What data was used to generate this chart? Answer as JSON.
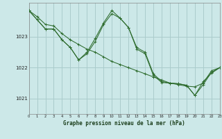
{
  "title": "Graphe pression niveau de la mer (hPa)",
  "background_color": "#cce8e8",
  "grid_color": "#aacccc",
  "line_color": "#2d6b2d",
  "xlim": [
    0,
    23
  ],
  "ylim": [
    1020.5,
    1024.1
  ],
  "yticks": [
    1021,
    1022,
    1023
  ],
  "xticks": [
    0,
    1,
    2,
    3,
    4,
    5,
    6,
    7,
    8,
    9,
    10,
    11,
    12,
    13,
    14,
    15,
    16,
    17,
    18,
    19,
    20,
    21,
    22,
    23
  ],
  "line1": [
    1023.85,
    1023.65,
    1023.4,
    1023.35,
    1023.1,
    1022.9,
    1022.75,
    1022.6,
    1022.5,
    1022.35,
    1022.2,
    1022.1,
    1022.0,
    1021.9,
    1021.8,
    1021.7,
    1021.6,
    1021.5,
    1021.45,
    1021.4,
    1021.38,
    1021.5,
    1021.9,
    1022.0
  ],
  "line2": [
    1023.85,
    1023.55,
    1023.25,
    1023.25,
    1022.9,
    1022.65,
    1022.25,
    1022.45,
    1022.85,
    1023.4,
    1023.75,
    1023.6,
    1023.3,
    1022.65,
    1022.5,
    1021.8,
    1021.55,
    1021.5,
    1021.48,
    1021.43,
    1021.1,
    1021.45,
    1021.85,
    1022.0
  ],
  "line3": [
    1023.85,
    1023.55,
    1023.25,
    1023.25,
    1022.9,
    1022.65,
    1022.25,
    1022.5,
    1022.95,
    1023.45,
    1023.85,
    1023.6,
    1023.3,
    1022.6,
    1022.45,
    1021.75,
    1021.52,
    1021.5,
    1021.48,
    1021.43,
    1021.1,
    1021.55,
    1021.82,
    1022.0
  ]
}
